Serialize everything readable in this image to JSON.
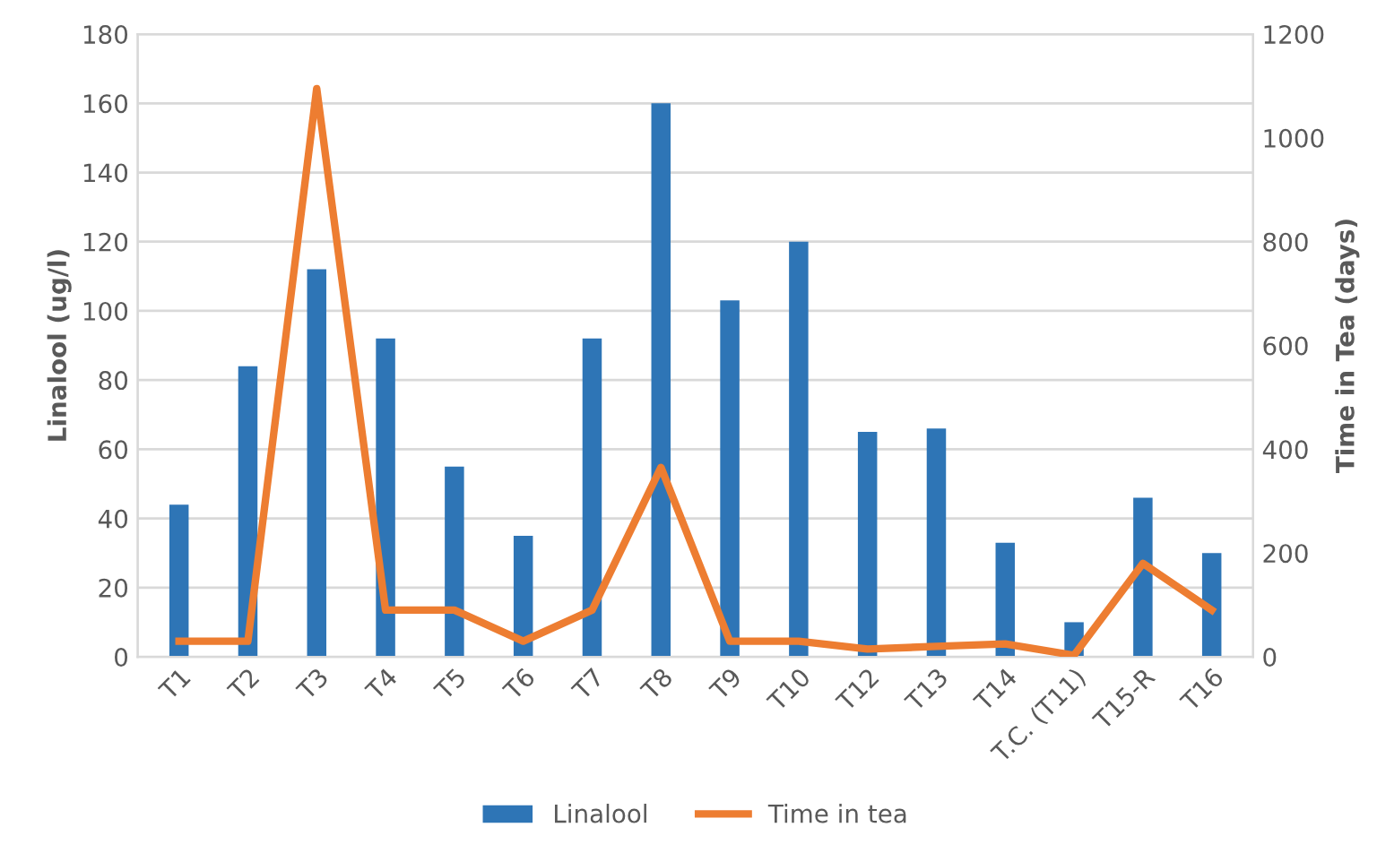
{
  "chart_data": {
    "type": "bar",
    "categories": [
      "T1",
      "T2",
      "T3",
      "T4",
      "T5",
      "T6",
      "T7",
      "T8",
      "T9",
      "T10",
      "T12",
      "T13",
      "T14",
      "T.C. (T11)",
      "T15-R",
      "T16"
    ],
    "series": [
      {
        "name": "Linalool",
        "color": "#2e75b6",
        "values": [
          44,
          84,
          112,
          92,
          55,
          35,
          92,
          160,
          103,
          120,
          65,
          66,
          33,
          10,
          46,
          30
        ]
      },
      {
        "name": "Time in tea",
        "type": "line",
        "axis": "y2",
        "color": "#ed7d31",
        "values": [
          30,
          30,
          1095,
          90,
          90,
          30,
          90,
          365,
          30,
          30,
          15,
          20,
          25,
          3,
          180,
          90
        ]
      }
    ],
    "ylabel": "Linalool (ug/l)",
    "y2label": "Time in Tea (days)",
    "ylim": [
      0,
      180
    ],
    "yticks": [
      0,
      20,
      40,
      60,
      80,
      100,
      120,
      140,
      160,
      180
    ],
    "y2lim": [
      0,
      1200
    ],
    "y2ticks": [
      0,
      200,
      400,
      600,
      800,
      1000,
      1200
    ],
    "grid": "y",
    "legend": "bottom"
  }
}
